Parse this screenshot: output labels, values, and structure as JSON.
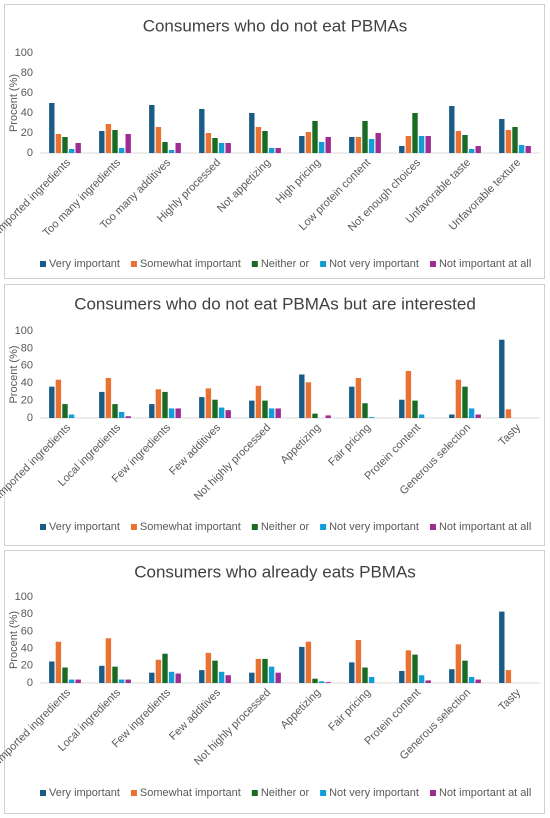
{
  "chart_data": [
    {
      "type": "bar",
      "title": "Consumers who do not eat PBMAs",
      "y_label": "Procent (%)",
      "categories": [
        "Imported ingredients",
        "Too many ingredients",
        "Too many additives",
        "Highly processed",
        "Not appetizing",
        "High pricing",
        "Low protein content",
        "Not enough choices",
        "Unfavorable taste",
        "Unfavorable texture"
      ],
      "series": [
        {
          "name": "Very important",
          "color": "#1b5c86",
          "values": [
            50,
            22,
            48,
            44,
            40,
            17,
            16,
            7,
            47,
            34
          ]
        },
        {
          "name": "Somewhat important",
          "color": "#e97132",
          "values": [
            19,
            29,
            26,
            20,
            26,
            21,
            16,
            17,
            22,
            23
          ]
        },
        {
          "name": "Neither or",
          "color": "#196b24",
          "values": [
            16,
            23,
            11,
            15,
            22,
            32,
            32,
            40,
            18,
            26
          ]
        },
        {
          "name": "Not very important",
          "color": "#0f9ed5",
          "values": [
            4,
            5,
            3,
            10,
            5,
            11,
            14,
            17,
            4,
            8
          ]
        },
        {
          "name": "Not important at all",
          "color": "#a02b93",
          "values": [
            10,
            19,
            10,
            10,
            5,
            16,
            20,
            17,
            7,
            7
          ]
        }
      ],
      "ylim": [
        0,
        100
      ],
      "yticks": [
        0,
        20,
        40,
        60,
        80,
        100
      ],
      "grid": false,
      "legend": "bottom"
    },
    {
      "type": "bar",
      "title": "Consumers who do not eat PBMAs but are interested",
      "y_label": "Procent (%)",
      "categories": [
        "Imported ingredients",
        "Local ingredients",
        "Few ingredients",
        "Few additives",
        "Not highly processed",
        "Appetizing",
        "Fair pricing",
        "Protein content",
        "Generous selection",
        "Tasty"
      ],
      "series": [
        {
          "name": "Very important",
          "color": "#1b5c86",
          "values": [
            36,
            30,
            16,
            24,
            20,
            50,
            36,
            21,
            4,
            90
          ]
        },
        {
          "name": "Somewhat important",
          "color": "#e97132",
          "values": [
            44,
            46,
            33,
            34,
            37,
            41,
            46,
            54,
            44,
            10
          ]
        },
        {
          "name": "Neither or",
          "color": "#196b24",
          "values": [
            16,
            16,
            30,
            21,
            20,
            5,
            17,
            20,
            36,
            0
          ]
        },
        {
          "name": "Not very important",
          "color": "#0f9ed5",
          "values": [
            4,
            7,
            11,
            12,
            11,
            0,
            1,
            4,
            11,
            0
          ]
        },
        {
          "name": "Not important at all",
          "color": "#a02b93",
          "values": [
            0,
            2,
            11,
            9,
            11,
            3,
            0,
            0,
            4,
            0
          ]
        }
      ],
      "ylim": [
        0,
        100
      ],
      "yticks": [
        0,
        20,
        40,
        60,
        80,
        100
      ],
      "grid": false,
      "legend": "bottom"
    },
    {
      "type": "bar",
      "title": "Consumers who already eats PBMAs",
      "y_label": "Procent (%)",
      "categories": [
        "Imported ingredients",
        "Local ingredients",
        "Few ingredients",
        "Few additives",
        "Not highly processed",
        "Appetizing",
        "Fair pricing",
        "Protein content",
        "Generous selection",
        "Tasty"
      ],
      "series": [
        {
          "name": "Very important",
          "color": "#1b5c86",
          "values": [
            25,
            20,
            12,
            15,
            12,
            42,
            24,
            14,
            16,
            83
          ]
        },
        {
          "name": "Somewhat important",
          "color": "#e97132",
          "values": [
            48,
            52,
            27,
            35,
            28,
            48,
            50,
            38,
            45,
            15
          ]
        },
        {
          "name": "Neither or",
          "color": "#196b24",
          "values": [
            18,
            19,
            34,
            26,
            28,
            5,
            18,
            33,
            26,
            0
          ]
        },
        {
          "name": "Not very important",
          "color": "#0f9ed5",
          "values": [
            4,
            4,
            13,
            13,
            19,
            2,
            7,
            9,
            7,
            0
          ]
        },
        {
          "name": "Not important at all",
          "color": "#a02b93",
          "values": [
            4,
            4,
            11,
            9,
            12,
            1,
            0,
            3,
            4,
            0
          ]
        }
      ],
      "ylim": [
        0,
        100
      ],
      "yticks": [
        0,
        20,
        40,
        60,
        80,
        100
      ],
      "grid": false,
      "legend": "bottom"
    }
  ]
}
